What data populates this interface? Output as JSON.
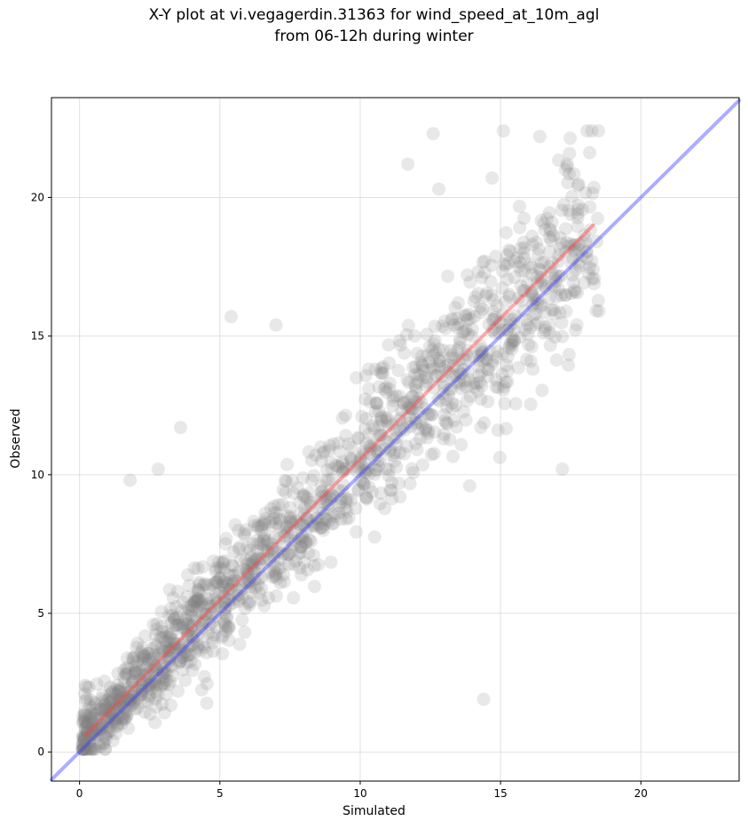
{
  "chart_data": {
    "type": "scatter",
    "title": "X-Y plot at vi.vegagerdin.31363 for wind_speed_at_10m_agl",
    "subtitle": "from 06-12h during winter",
    "xlabel": "Simulated",
    "ylabel": "Observed",
    "xlim": [
      -1.0,
      23.5
    ],
    "ylim": [
      -1.05,
      23.6
    ],
    "xticks": [
      "0",
      "5",
      "10",
      "15",
      "20"
    ],
    "xtick_values": [
      0,
      5,
      10,
      15,
      20
    ],
    "yticks": [
      "0",
      "5",
      "10",
      "15",
      "20"
    ],
    "ytick_values": [
      0,
      5,
      10,
      15,
      20
    ],
    "grid": true,
    "scatter": {
      "color": "#808080",
      "alpha": 0.18,
      "n_points": 1500,
      "regression_mean": {
        "slope": 1.0,
        "intercept": 0.45
      },
      "spread_sd": 1.7,
      "x_range": [
        0.1,
        18.5
      ],
      "sample_points": [
        {
          "x": 12.6,
          "y": 22.3
        },
        {
          "x": 15.1,
          "y": 22.4
        },
        {
          "x": 16.4,
          "y": 22.2
        },
        {
          "x": 11.7,
          "y": 21.2
        },
        {
          "x": 14.7,
          "y": 20.7
        },
        {
          "x": 12.8,
          "y": 20.3
        },
        {
          "x": 5.4,
          "y": 15.7
        },
        {
          "x": 7.0,
          "y": 15.4
        },
        {
          "x": 17.2,
          "y": 10.2
        },
        {
          "x": 14.4,
          "y": 1.9
        },
        {
          "x": 13.9,
          "y": 9.6
        },
        {
          "x": 0.2,
          "y": 2.4
        },
        {
          "x": 1.8,
          "y": 9.8
        },
        {
          "x": 2.8,
          "y": 10.2
        },
        {
          "x": 3.6,
          "y": 11.7
        },
        {
          "x": 18.5,
          "y": 15.9
        },
        {
          "x": 18.3,
          "y": 17.4
        },
        {
          "x": 15.3,
          "y": 18.1
        }
      ]
    },
    "series": [
      {
        "kind": "regression-line",
        "color": "#ff4444",
        "alpha": 0.45,
        "x": [
          0.2,
          18.3
        ],
        "y": [
          0.6,
          19.0
        ]
      },
      {
        "kind": "identity-line",
        "color": "#3333ff",
        "alpha": 0.4,
        "x": [
          -1.0,
          23.5
        ],
        "y": [
          -1.0,
          23.5
        ]
      }
    ]
  }
}
